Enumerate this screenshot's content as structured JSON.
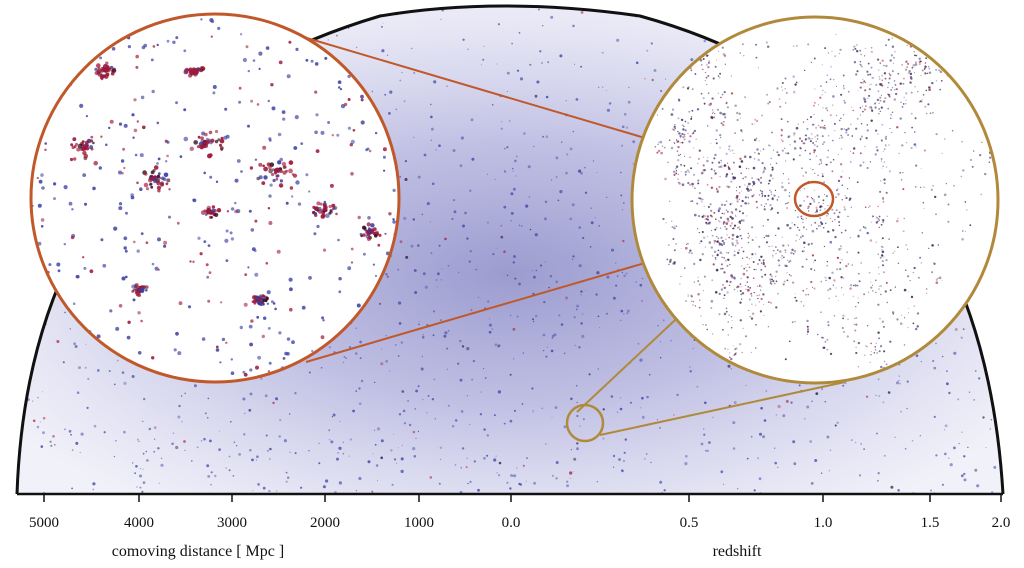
{
  "colors": {
    "background": "#ffffff",
    "outline": "#111111",
    "galaxy_blue": "#3a3fa0",
    "galaxy_red": "#a01838",
    "galaxy_dark": "#241040",
    "zoom_small_ring": "#c0582a",
    "zoom_large_ring": "#b08a3a"
  },
  "left_axis": {
    "title": "comoving distance [ Mpc ]",
    "ticks": [
      "5000",
      "4000",
      "3000",
      "2000",
      "1000"
    ]
  },
  "right_axis": {
    "title": "redshift",
    "ticks": [
      "0.0",
      "0.5",
      "1.0",
      "1.5",
      "2.0"
    ]
  },
  "insets": [
    {
      "name": "zoom-inset-small-scale",
      "ring_color": "#c0582a",
      "content": "galaxy clusters and groups (red and blue points)"
    },
    {
      "name": "zoom-inset-large-scale",
      "ring_color": "#b08a3a",
      "content": "cosmic web filaments"
    }
  ]
}
